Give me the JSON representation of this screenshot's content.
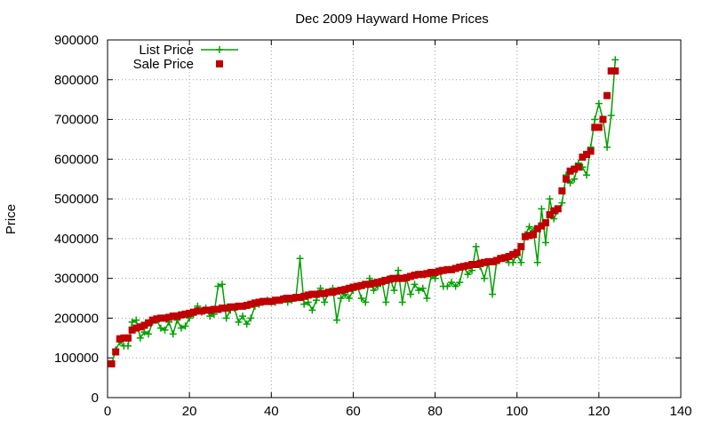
{
  "chart_data": {
    "type": "line",
    "title": "Dec 2009 Hayward Home Prices",
    "xlabel": "",
    "ylabel": "Price",
    "xlim": [
      0,
      140
    ],
    "ylim": [
      0,
      900000
    ],
    "x_ticks": [
      0,
      20,
      40,
      60,
      80,
      100,
      120,
      140
    ],
    "y_ticks": [
      0,
      100000,
      200000,
      300000,
      400000,
      500000,
      600000,
      700000,
      800000,
      900000
    ],
    "grid": true,
    "legend_position": "top-left",
    "series": [
      {
        "name": "List Price",
        "color": "#00a000",
        "marker": "plus",
        "x": [
          1,
          2,
          3,
          4,
          5,
          6,
          7,
          8,
          9,
          10,
          11,
          12,
          13,
          14,
          15,
          16,
          17,
          18,
          19,
          20,
          21,
          22,
          23,
          24,
          25,
          26,
          27,
          28,
          29,
          30,
          31,
          32,
          33,
          34,
          35,
          36,
          37,
          38,
          39,
          40,
          41,
          42,
          43,
          44,
          45,
          46,
          47,
          48,
          49,
          50,
          51,
          52,
          53,
          54,
          55,
          56,
          57,
          58,
          59,
          60,
          61,
          62,
          63,
          64,
          65,
          66,
          67,
          68,
          69,
          70,
          71,
          72,
          73,
          74,
          75,
          76,
          77,
          78,
          79,
          80,
          81,
          82,
          83,
          84,
          85,
          86,
          87,
          88,
          89,
          90,
          91,
          92,
          93,
          94,
          95,
          96,
          97,
          98,
          99,
          100,
          101,
          102,
          103,
          104,
          105,
          106,
          107,
          108,
          109,
          110,
          111,
          112,
          113,
          114,
          115,
          116,
          117,
          118,
          119,
          120,
          121,
          122,
          123,
          124
        ],
        "y": [
          85000,
          120000,
          140000,
          130000,
          130000,
          190000,
          195000,
          150000,
          165000,
          160000,
          190000,
          195000,
          175000,
          170000,
          190000,
          160000,
          195000,
          175000,
          180000,
          200000,
          210000,
          230000,
          215000,
          225000,
          205000,
          210000,
          280000,
          285000,
          200000,
          220000,
          225000,
          190000,
          205000,
          185000,
          200000,
          230000,
          235000,
          240000,
          245000,
          240000,
          240000,
          245000,
          250000,
          240000,
          245000,
          250000,
          350000,
          235000,
          240000,
          220000,
          245000,
          275000,
          240000,
          265000,
          275000,
          195000,
          250000,
          260000,
          250000,
          270000,
          280000,
          250000,
          240000,
          300000,
          270000,
          280000,
          295000,
          240000,
          300000,
          270000,
          320000,
          240000,
          300000,
          260000,
          285000,
          270000,
          275000,
          250000,
          305000,
          300000,
          320000,
          280000,
          280000,
          290000,
          280000,
          290000,
          330000,
          310000,
          320000,
          380000,
          330000,
          300000,
          340000,
          260000,
          340000,
          350000,
          350000,
          340000,
          340000,
          360000,
          340000,
          410000,
          430000,
          420000,
          340000,
          475000,
          390000,
          500000,
          450000,
          470000,
          490000,
          560000,
          540000,
          550000,
          590000,
          580000,
          560000,
          630000,
          700000,
          740000,
          700000,
          630000,
          710000,
          850000
        ]
      },
      {
        "name": "Sale Price",
        "color": "#c00000",
        "marker": "square",
        "x": [
          1,
          2,
          3,
          4,
          5,
          6,
          7,
          8,
          9,
          10,
          11,
          12,
          13,
          14,
          15,
          16,
          17,
          18,
          19,
          20,
          21,
          22,
          23,
          24,
          25,
          26,
          27,
          28,
          29,
          30,
          31,
          32,
          33,
          34,
          35,
          36,
          37,
          38,
          39,
          40,
          41,
          42,
          43,
          44,
          45,
          46,
          47,
          48,
          49,
          50,
          51,
          52,
          53,
          54,
          55,
          56,
          57,
          58,
          59,
          60,
          61,
          62,
          63,
          64,
          65,
          66,
          67,
          68,
          69,
          70,
          71,
          72,
          73,
          74,
          75,
          76,
          77,
          78,
          79,
          80,
          81,
          82,
          83,
          84,
          85,
          86,
          87,
          88,
          89,
          90,
          91,
          92,
          93,
          94,
          95,
          96,
          97,
          98,
          99,
          100,
          101,
          102,
          103,
          104,
          105,
          106,
          107,
          108,
          109,
          110,
          111,
          112,
          113,
          114,
          115,
          116,
          117,
          118,
          119,
          120,
          121,
          122,
          123,
          124
        ],
        "y": [
          85000,
          115000,
          148000,
          150000,
          150000,
          170000,
          175000,
          178000,
          182000,
          188000,
          195000,
          198000,
          200000,
          200000,
          202000,
          205000,
          205000,
          208000,
          210000,
          212000,
          215000,
          218000,
          218000,
          220000,
          220000,
          222000,
          222000,
          225000,
          225000,
          228000,
          228000,
          230000,
          230000,
          232000,
          235000,
          238000,
          240000,
          242000,
          242000,
          242000,
          245000,
          245000,
          248000,
          250000,
          250000,
          252000,
          252000,
          255000,
          258000,
          260000,
          260000,
          262000,
          262000,
          265000,
          265000,
          268000,
          270000,
          272000,
          275000,
          278000,
          280000,
          282000,
          285000,
          285000,
          288000,
          290000,
          292000,
          295000,
          298000,
          300000,
          300000,
          300000,
          302000,
          305000,
          308000,
          310000,
          310000,
          312000,
          315000,
          315000,
          318000,
          320000,
          322000,
          322000,
          325000,
          328000,
          330000,
          332000,
          335000,
          335000,
          338000,
          340000,
          342000,
          342000,
          345000,
          350000,
          352000,
          355000,
          360000,
          365000,
          380000,
          405000,
          408000,
          410000,
          425000,
          432000,
          440000,
          460000,
          470000,
          475000,
          520000,
          550000,
          570000,
          575000,
          580000,
          605000,
          612000,
          620000,
          680000,
          680000,
          700000,
          760000,
          822000,
          822000
        ]
      }
    ]
  }
}
